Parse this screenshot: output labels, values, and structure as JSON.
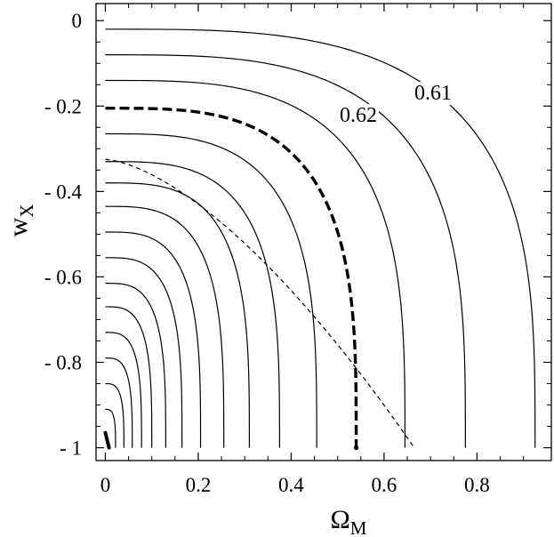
{
  "chart_data": {
    "type": "line",
    "xlabel": "Ω",
    "xlabel_subscript": "M",
    "ylabel": "w",
    "ylabel_subscript": "X",
    "xlim": [
      -0.02,
      0.96
    ],
    "ylim": [
      -1.03,
      0.04
    ],
    "xticks": [
      0,
      0.2,
      0.4,
      0.6,
      0.8
    ],
    "xtick_labels": [
      "0",
      "0.2",
      "0.4",
      "0.6",
      "0.8"
    ],
    "yticks": [
      0,
      -0.2,
      -0.4,
      -0.6,
      -0.8,
      -1
    ],
    "ytick_labels": [
      "0",
      "- 0.2",
      "- 0.4",
      "- 0.6",
      "- 0.8",
      "- 1"
    ],
    "grid": false,
    "contours": [
      {
        "y_top": -0.02,
        "x_bottom": 0.925,
        "label": "0.61"
      },
      {
        "y_top": -0.08,
        "x_bottom": 0.775,
        "label": "0.62"
      },
      {
        "y_top": -0.14,
        "x_bottom": 0.645
      },
      {
        "y_top": -0.265,
        "x_bottom": 0.455
      },
      {
        "y_top": -0.33,
        "x_bottom": 0.375
      },
      {
        "y_top": -0.38,
        "x_bottom": 0.31
      },
      {
        "y_top": -0.435,
        "x_bottom": 0.255
      },
      {
        "y_top": -0.495,
        "x_bottom": 0.205
      },
      {
        "y_top": -0.555,
        "x_bottom": 0.165
      },
      {
        "y_top": -0.615,
        "x_bottom": 0.13
      },
      {
        "y_top": -0.67,
        "x_bottom": 0.1
      },
      {
        "y_top": -0.73,
        "x_bottom": 0.078
      },
      {
        "y_top": -0.79,
        "x_bottom": 0.058
      },
      {
        "y_top": -0.85,
        "x_bottom": 0.04
      },
      {
        "y_top": -0.91,
        "x_bottom": 0.022
      }
    ],
    "bold_dashed_curve": {
      "y_top": -0.205,
      "x_bottom": 0.54,
      "style": "thick-dashed",
      "end_marker": "dot"
    },
    "thin_dashed_curve": {
      "y_top": -0.325,
      "x_bottom": 0.665,
      "style": "thin-dashed"
    },
    "corner_segment": {
      "x": [
        0,
        0.008
      ],
      "y": [
        -0.965,
        -1.0
      ]
    }
  }
}
